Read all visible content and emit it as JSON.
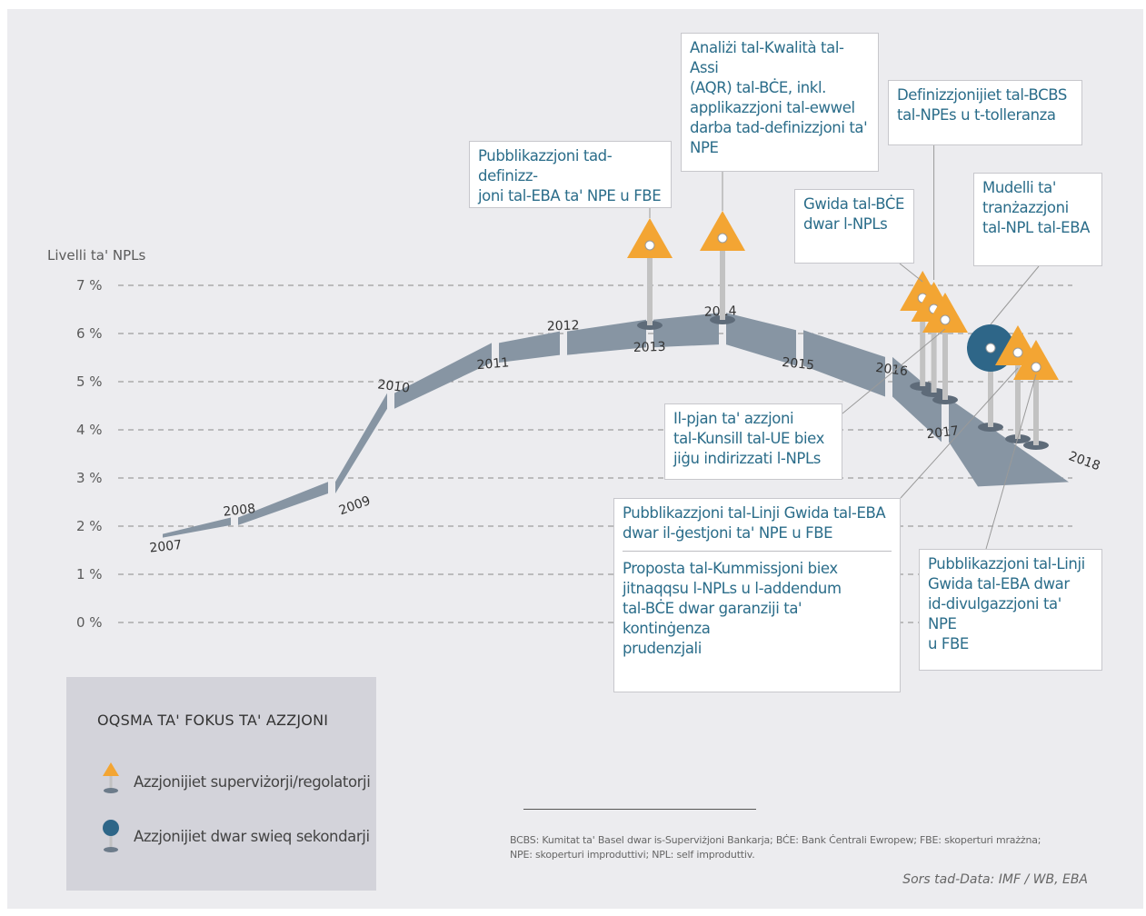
{
  "chart_data": {
    "type": "area",
    "ylabel": "Livelli ta' NPLs",
    "yticks": [
      "0 %",
      "1 %",
      "2 %",
      "3 %",
      "4 %",
      "5 %",
      "6 %",
      "7 %"
    ],
    "ylim": [
      0,
      7
    ],
    "grid": true,
    "categories": [
      "2007",
      "2008",
      "2009",
      "2010",
      "2011",
      "2012",
      "2013",
      "2014",
      "2015",
      "2016",
      "2017",
      "2018"
    ],
    "values": [
      1.8,
      2.1,
      2.8,
      4.6,
      5.6,
      5.8,
      6.0,
      6.1,
      5.7,
      5.1,
      4.2,
      3.2
    ],
    "markers": [
      {
        "type": "supervisory",
        "x": 2013.0,
        "text": "Pubblikazzjoni tad-definizz-\njoni tal-EBA ta' NPE u FBE"
      },
      {
        "type": "supervisory",
        "x": 2014.0,
        "text": "Analiżi tal-Kwalità tal-Assi\n(AQR) tal-BĊE, inkl.\napplikazzjoni tal-ewwel\ndarba tad-definizzjoni ta'\nNPE"
      },
      {
        "type": "supervisory",
        "x": 2016.6,
        "text": "Gwida tal-BĊE\ndwar l-NPLs"
      },
      {
        "type": "supervisory",
        "x": 2016.8,
        "text": "Definizzjonijiet tal-BCBS\ntal-NPEs u t-tolleranza"
      },
      {
        "type": "supervisory",
        "x": 2017.0,
        "text": "Il-pjan ta' azzjoni\ntal-Kunsill tal-UE biex\njiġu indirizzati l-NPLs"
      },
      {
        "type": "secondary-market",
        "x": 2017.5,
        "text": "Mudelli ta'\ntranżazzjoni\ntal-NPL tal-EBA"
      },
      {
        "type": "supervisory",
        "x": 2017.8,
        "text": "Pubblikazzjoni tal-Linji Gwida tal-EBA dwar il-ġestjoni ta' NPE u FBE; Proposta tal-Kummissjoni biex jitnaqqsu l-NPLs u l-addendum tal-BĊE dwar garanziji ta' kontinġenza prudenzjali"
      },
      {
        "type": "supervisory",
        "x": 2018.0,
        "text": "Pubblikazzjoni tal-Linji\nGwida tal-EBA dwar\nid-divulgazzjoni ta' NPE\nu FBE"
      }
    ]
  },
  "colors": {
    "background": "#ececef",
    "band": "#8795a3",
    "grid": "#8a8a8a",
    "triangle": "#f3a533",
    "circle": "#2e6688",
    "pin": "#c2c2c2",
    "callout_text": "#2b6d8a"
  },
  "callouts": {
    "eba_def": [
      "Pubblikazzjoni tad-definizz-",
      "joni tal-EBA ta' NPE u FBE"
    ],
    "aqr": [
      "Analiżi tal-Kwalità tal-Assi",
      "(AQR) tal-BĊE, inkl.",
      "applikazzjoni tal-ewwel",
      "darba tad-definizzjoni ta'",
      "NPE"
    ],
    "bcbs": [
      "Definizzjonijiet tal-BCBS",
      "tal-NPEs u t-tolleranza"
    ],
    "ecb_guide": [
      "Gwida tal-BĊE",
      "dwar l-NPLs"
    ],
    "mudelli": [
      "Mudelli ta'",
      "tranżazzjoni",
      "tal-NPL tal-EBA"
    ],
    "council": [
      "Il-pjan ta' azzjoni",
      "tal-Kunsill tal-UE biex",
      "jiġu indirizzati l-NPLs"
    ],
    "eba_guide_top": [
      "Pubblikazzjoni tal-Linji Gwida tal-EBA",
      "dwar il-ġestjoni ta' NPE u FBE"
    ],
    "eba_guide_bottom": [
      "Proposta tal-Kummissjoni biex",
      "jitnaqqsu l-NPLs u l-addendum",
      "tal-BĊE dwar garanziji ta' kontinġenza",
      "prudenzjali"
    ],
    "eba_disclosure": [
      "Pubblikazzjoni tal-Linji",
      "Gwida tal-EBA dwar",
      "id-divulgazzjoni ta' NPE",
      "u FBE"
    ]
  },
  "legend": {
    "title": "OQSMA TA' FOKUS TA' AZZJONI",
    "items": [
      {
        "label": "Azzjonijiet superviżorji/regolatorji",
        "icon": "triangle-pin-icon"
      },
      {
        "label": "Azzjonijiet dwar swieq sekondarji",
        "icon": "circle-pin-icon"
      }
    ]
  },
  "footnote": {
    "line1": "BCBS: Kumitat ta' Basel dwar is-Superviżjoni Bankarja; BĊE: Bank Ċentrali Ewropew; FBE: skoperturi mrażżna;",
    "line2": "NPE: skoperturi improduttivi; NPL: self improduttiv."
  },
  "source": "Sors tad-Data: IMF / WB, EBA"
}
